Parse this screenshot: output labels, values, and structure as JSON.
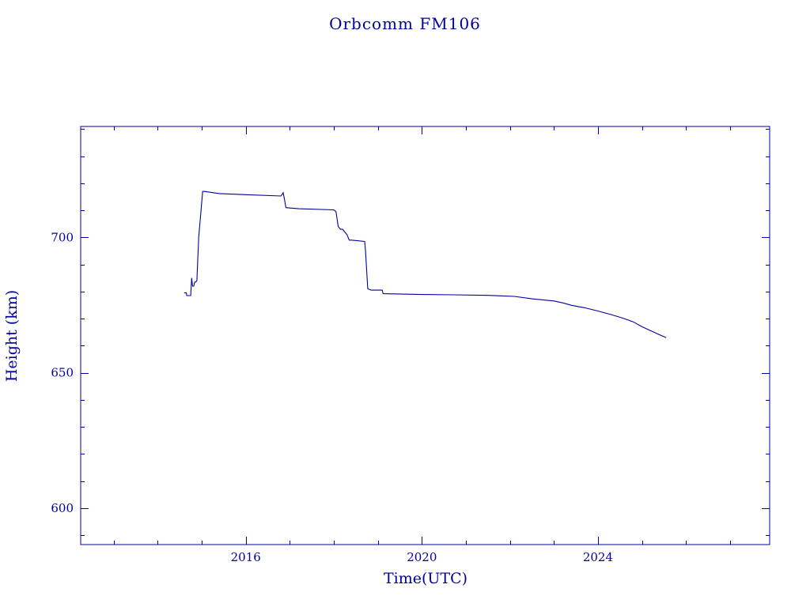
{
  "colors": {
    "ink": "#0000a0",
    "background": "#ffffff"
  },
  "chart_data": {
    "type": "line",
    "title": "Orbcomm FM106",
    "xlabel": "Time(UTC)",
    "ylabel": "Height (km)",
    "xlim": [
      2012.25,
      2027.9
    ],
    "ylim": [
      586.5,
      741
    ],
    "x_ticks": [
      2016,
      2020,
      2024
    ],
    "x_tick_labels": [
      "2016",
      "2020",
      "2024"
    ],
    "y_ticks": [
      600,
      650,
      700
    ],
    "y_tick_labels": [
      "600",
      "650",
      "700"
    ],
    "grid": false,
    "legend": "none",
    "series": [
      {
        "x": [
          2014.6,
          2014.65,
          2014.66,
          2014.75,
          2014.77,
          2014.79,
          2014.82,
          2014.84,
          2014.86,
          2014.89,
          2014.93,
          2015.02,
          2015.06,
          2015.4,
          2016.0,
          2016.8,
          2016.85,
          2016.88,
          2016.91,
          2017.2,
          2018.0,
          2018.05,
          2018.1,
          2018.15,
          2018.2,
          2018.3,
          2018.35,
          2018.4,
          2018.7,
          2018.72,
          2018.77,
          2018.85,
          2019.1,
          2019.12,
          2020.0,
          2020.7,
          2021.5,
          2022.1,
          2022.5,
          2023.0,
          2023.2,
          2023.4,
          2023.7,
          2024.0,
          2024.3,
          2024.6,
          2024.8,
          2025.0,
          2025.2,
          2025.4,
          2025.55
        ],
        "y": [
          679.5,
          679.5,
          678.5,
          678.5,
          685,
          682,
          682,
          683.5,
          683.5,
          684,
          700,
          717,
          717,
          716.2,
          715.8,
          715.3,
          716.5,
          714,
          711,
          710.6,
          710.2,
          709.5,
          704,
          703,
          703,
          701,
          699,
          699,
          698.5,
          695,
          681,
          680.5,
          680.5,
          679.2,
          678.9,
          678.8,
          678.6,
          678.2,
          677.3,
          676.5,
          675.8,
          674.9,
          674,
          672.8,
          671.5,
          670,
          668.8,
          667,
          665.5,
          664,
          663
        ]
      }
    ]
  }
}
